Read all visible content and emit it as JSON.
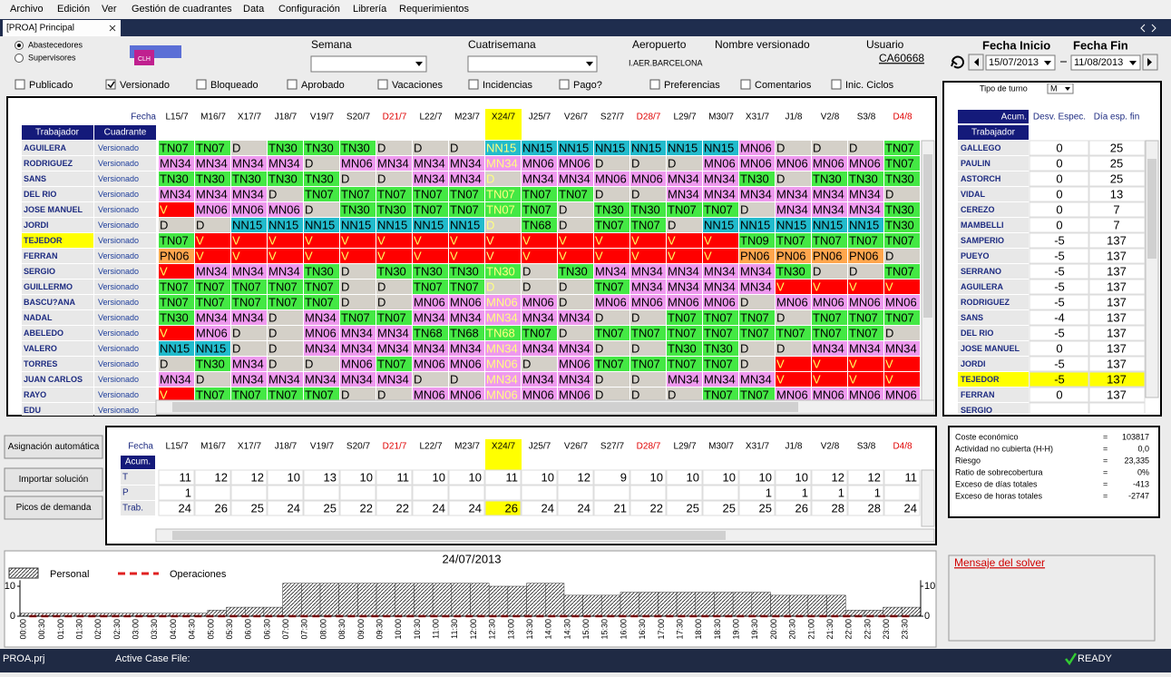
{
  "menu": [
    "Archivo",
    "Edición",
    "Ver",
    "Gestión de cuadrantes",
    "Data",
    "Configuración",
    "Librería",
    "Requerimientos"
  ],
  "tab": "[PROA] Principal",
  "controls": {
    "radios": [
      {
        "label": "Abastecedores",
        "checked": true
      },
      {
        "label": "Supervisores",
        "checked": false
      }
    ],
    "logo": "CLH",
    "semana": "Semana",
    "cuatrisemana": "Cuatrisemana",
    "aeropuerto": "Aeropuerto",
    "aeropuerto_value": "I.AER.BARCELONA",
    "nombre_versionado": "Nombre versionado",
    "usuario": "Usuario",
    "usuario_value": "CA60668",
    "fecha_inicio": "Fecha Inicio",
    "fecha_inicio_value": "15/07/2013",
    "fecha_fin": "Fecha Fin",
    "fecha_fin_value": "11/08/2013",
    "checkboxes": [
      {
        "label": "Publicado",
        "checked": false
      },
      {
        "label": "Versionado",
        "checked": true
      },
      {
        "label": "Bloqueado",
        "checked": false
      },
      {
        "label": "Aprobado",
        "checked": false
      },
      {
        "label": "Vacaciones",
        "checked": false
      },
      {
        "label": "Incidencias",
        "checked": false
      },
      {
        "label": "Pago?",
        "checked": false
      },
      {
        "label": "Preferencias",
        "checked": false
      },
      {
        "label": "Comentarios",
        "checked": false
      },
      {
        "label": "Inic. Ciclos",
        "checked": false
      }
    ]
  },
  "grid": {
    "date_label": "Fecha",
    "headers": [
      "Trabajador",
      "Cuadrante"
    ],
    "dates": [
      "L15/7",
      "M16/7",
      "X17/7",
      "J18/7",
      "V19/7",
      "S20/7",
      "D21/7",
      "L22/7",
      "M23/7",
      "X24/7",
      "J25/7",
      "V26/7",
      "S27/7",
      "D28/7",
      "L29/7",
      "M30/7",
      "X31/7",
      "J1/8",
      "V2/8",
      "S3/8",
      "D4/8"
    ],
    "rows": [
      {
        "name": "AGUILERA",
        "status": "Versionado",
        "shifts": [
          "TN07",
          "TN07",
          "D",
          "TN30",
          "TN30",
          "TN30",
          "D",
          "D",
          "D",
          "NN15",
          "NN15",
          "NN15",
          "NN15",
          "NN15",
          "NN15",
          "NN15",
          "MN06",
          "D",
          "D",
          "D",
          "TN07"
        ]
      },
      {
        "name": "RODRIGUEZ",
        "status": "Versionado",
        "shifts": [
          "MN34",
          "MN34",
          "MN34",
          "MN34",
          "D",
          "MN06",
          "MN34",
          "MN34",
          "MN34",
          "MN34",
          "MN06",
          "MN06",
          "D",
          "D",
          "D",
          "MN06",
          "MN06",
          "MN06",
          "MN06",
          "MN06",
          "TN07"
        ]
      },
      {
        "name": "SANS",
        "status": "Versionado",
        "shifts": [
          "TN30",
          "TN30",
          "TN30",
          "TN30",
          "TN30",
          "D",
          "D",
          "MN34",
          "MN34",
          "D",
          "MN34",
          "MN34",
          "MN06",
          "MN06",
          "MN34",
          "MN34",
          "TN30",
          "D",
          "TN30",
          "TN30",
          "TN30"
        ]
      },
      {
        "name": "DEL RIO",
        "status": "Versionado",
        "shifts": [
          "MN34",
          "MN34",
          "MN34",
          "D",
          "TN07",
          "TN07",
          "TN07",
          "TN07",
          "TN07",
          "TN07",
          "TN07",
          "TN07",
          "D",
          "D",
          "MN34",
          "MN34",
          "MN34",
          "MN34",
          "MN34",
          "MN34",
          "D"
        ]
      },
      {
        "name": "JOSE MANUEL",
        "status": "Versionado",
        "shifts": [
          "V",
          "MN06",
          "MN06",
          "MN06",
          "D",
          "TN30",
          "TN30",
          "TN07",
          "TN07",
          "TN07",
          "TN07",
          "D",
          "TN30",
          "TN30",
          "TN07",
          "TN07",
          "D",
          "MN34",
          "MN34",
          "MN34",
          "TN30"
        ]
      },
      {
        "name": "JORDI",
        "status": "Versionado",
        "shifts": [
          "D",
          "D",
          "NN15",
          "NN15",
          "NN15",
          "NN15",
          "NN15",
          "NN15",
          "NN15",
          "D",
          "TN68",
          "D",
          "TN07",
          "TN07",
          "D",
          "NN15",
          "NN15",
          "NN15",
          "NN15",
          "NN15",
          "TN30"
        ]
      },
      {
        "name": "TEJEDOR",
        "status": "Versionado",
        "shifts": [
          "TN07",
          "V",
          "V",
          "V",
          "V",
          "V",
          "V",
          "V",
          "V",
          "V",
          "V",
          "V",
          "V",
          "V",
          "V",
          "V",
          "TN09",
          "TN07",
          "TN07",
          "TN07",
          "TN07"
        ]
      },
      {
        "name": "FERRAN",
        "status": "Versionado",
        "shifts": [
          "PN06",
          "V",
          "V",
          "V",
          "V",
          "V",
          "V",
          "V",
          "V",
          "V",
          "V",
          "V",
          "V",
          "V",
          "V",
          "V",
          "PN06",
          "PN06",
          "PN06",
          "PN06",
          "D"
        ]
      },
      {
        "name": "SERGIO",
        "status": "Versionado",
        "shifts": [
          "V",
          "MN34",
          "MN34",
          "MN34",
          "TN30",
          "D",
          "TN30",
          "TN30",
          "TN30",
          "TN30",
          "D",
          "TN30",
          "MN34",
          "MN34",
          "MN34",
          "MN34",
          "MN34",
          "TN30",
          "D",
          "D",
          "TN07"
        ]
      },
      {
        "name": "GUILLERMO",
        "status": "Versionado",
        "shifts": [
          "TN07",
          "TN07",
          "TN07",
          "TN07",
          "TN07",
          "D",
          "D",
          "TN07",
          "TN07",
          "D",
          "D",
          "D",
          "TN07",
          "MN34",
          "MN34",
          "MN34",
          "MN34",
          "V",
          "V",
          "V",
          "V"
        ]
      },
      {
        "name": "BASCU?ANA",
        "status": "Versionado",
        "shifts": [
          "TN07",
          "TN07",
          "TN07",
          "TN07",
          "TN07",
          "D",
          "D",
          "MN06",
          "MN06",
          "MN06",
          "MN06",
          "D",
          "MN06",
          "MN06",
          "MN06",
          "MN06",
          "D",
          "MN06",
          "MN06",
          "MN06",
          "MN06"
        ]
      },
      {
        "name": "NADAL",
        "status": "Versionado",
        "shifts": [
          "TN30",
          "MN34",
          "MN34",
          "D",
          "MN34",
          "TN07",
          "TN07",
          "MN34",
          "MN34",
          "MN34",
          "MN34",
          "MN34",
          "D",
          "D",
          "TN07",
          "TN07",
          "TN07",
          "D",
          "TN07",
          "TN07",
          "TN07"
        ]
      },
      {
        "name": "ABELEDO",
        "status": "Versionado",
        "shifts": [
          "V",
          "MN06",
          "D",
          "D",
          "MN06",
          "MN34",
          "MN34",
          "TN68",
          "TN68",
          "TN68",
          "TN07",
          "D",
          "TN07",
          "TN07",
          "TN07",
          "TN07",
          "TN07",
          "TN07",
          "TN07",
          "TN07",
          "D"
        ]
      },
      {
        "name": "VALERO",
        "status": "Versionado",
        "shifts": [
          "NN15",
          "NN15",
          "D",
          "D",
          "MN34",
          "MN34",
          "MN34",
          "MN34",
          "MN34",
          "MN34",
          "MN34",
          "MN34",
          "D",
          "D",
          "TN30",
          "TN30",
          "D",
          "D",
          "MN34",
          "MN34",
          "MN34"
        ]
      },
      {
        "name": "TORRES",
        "status": "Versionado",
        "shifts": [
          "D",
          "TN30",
          "MN34",
          "D",
          "D",
          "MN06",
          "TN07",
          "MN06",
          "MN06",
          "MN06",
          "D",
          "MN06",
          "TN07",
          "TN07",
          "TN07",
          "TN07",
          "D",
          "V",
          "V",
          "V",
          "V"
        ]
      },
      {
        "name": "JUAN CARLOS",
        "status": "Versionado",
        "shifts": [
          "MN34",
          "D",
          "MN34",
          "MN34",
          "MN34",
          "MN34",
          "MN34",
          "D",
          "D",
          "MN34",
          "MN34",
          "MN34",
          "D",
          "D",
          "MN34",
          "MN34",
          "MN34",
          "V",
          "V",
          "V",
          "V"
        ]
      },
      {
        "name": "RAYO",
        "status": "Versionado",
        "shifts": [
          "V",
          "TN07",
          "TN07",
          "TN07",
          "TN07",
          "D",
          "D",
          "MN06",
          "MN06",
          "MN06",
          "MN06",
          "MN06",
          "D",
          "D",
          "D",
          "TN07",
          "TN07",
          "MN06",
          "MN06",
          "MN06",
          "MN06"
        ]
      },
      {
        "name": "EDU",
        "status": "Versionado",
        "shifts": []
      }
    ]
  },
  "right_panel": {
    "tipo_label": "Tipo de turno",
    "tipo_value": "M",
    "headers": [
      "Acum.",
      "Desv. Espec.",
      "Día esp. fin"
    ],
    "worker_header": "Trabajador",
    "rows": [
      {
        "name": "GALLEGO",
        "desv": 0,
        "dia": 25
      },
      {
        "name": "PAULIN",
        "desv": 0,
        "dia": 25
      },
      {
        "name": "ASTORCH",
        "desv": 0,
        "dia": 25
      },
      {
        "name": "VIDAL",
        "desv": 0,
        "dia": 13
      },
      {
        "name": "CEREZO",
        "desv": 0,
        "dia": 7
      },
      {
        "name": "MAMBELLI",
        "desv": 0,
        "dia": 7
      },
      {
        "name": "SAMPERIO",
        "desv": -5,
        "dia": 137
      },
      {
        "name": "PUEYO",
        "desv": -5,
        "dia": 137
      },
      {
        "name": "SERRANO",
        "desv": -5,
        "dia": 137
      },
      {
        "name": "AGUILERA",
        "desv": -5,
        "dia": 137
      },
      {
        "name": "RODRIGUEZ",
        "desv": -5,
        "dia": 137
      },
      {
        "name": "SANS",
        "desv": -4,
        "dia": 137
      },
      {
        "name": "DEL RIO",
        "desv": -5,
        "dia": 137
      },
      {
        "name": "JOSE MANUEL",
        "desv": 0,
        "dia": 137
      },
      {
        "name": "JORDI",
        "desv": -5,
        "dia": 137
      },
      {
        "name": "TEJEDOR",
        "desv": -5,
        "dia": 137
      },
      {
        "name": "FERRAN",
        "desv": 0,
        "dia": 137
      },
      {
        "name": "SERGIO",
        "desv": null,
        "dia": null
      }
    ]
  },
  "buttons": [
    "Asignación automática",
    "Importar solución",
    "Picos de demanda"
  ],
  "totals": {
    "date_label": "Fecha",
    "acum_label": "Acum.",
    "rows": [
      {
        "label": "T",
        "values": [
          11,
          12,
          12,
          10,
          13,
          10,
          11,
          10,
          10,
          11,
          10,
          12,
          9,
          10,
          10,
          10,
          10,
          10,
          12,
          12,
          11
        ]
      },
      {
        "label": "P",
        "values": [
          1,
          null,
          null,
          null,
          null,
          null,
          null,
          null,
          null,
          null,
          null,
          null,
          null,
          null,
          null,
          null,
          1,
          1,
          1,
          1,
          null
        ]
      },
      {
        "label": "Trab.",
        "values": [
          24,
          26,
          25,
          24,
          25,
          22,
          22,
          24,
          24,
          26,
          24,
          24,
          21,
          22,
          25,
          25,
          25,
          26,
          28,
          28,
          24
        ]
      }
    ]
  },
  "summary": [
    {
      "label": "Coste económico",
      "sign": "=",
      "value": "103817"
    },
    {
      "label": "Actividad no cubierta (H-H)",
      "sign": "=",
      "value": "0,0"
    },
    {
      "label": "Riesgo",
      "sign": "=",
      "value": "23,335"
    },
    {
      "label": "Ratio de sobrecobertura",
      "sign": "=",
      "value": "0%"
    },
    {
      "label": "Exceso de días totales",
      "sign": "=",
      "value": "-413"
    },
    {
      "label": "Exceso de horas totales",
      "sign": "=",
      "value": "-2747"
    }
  ],
  "chart_data": {
    "type": "bar",
    "title": "24/07/2013",
    "categories": [
      "00:00",
      "00:30",
      "01:00",
      "01:30",
      "02:00",
      "02:30",
      "03:00",
      "03:30",
      "04:00",
      "04:30",
      "05:00",
      "05:30",
      "06:00",
      "06:30",
      "07:00",
      "07:30",
      "08:00",
      "08:30",
      "09:00",
      "09:30",
      "10:00",
      "10:30",
      "11:00",
      "11:30",
      "12:00",
      "12:30",
      "13:00",
      "13:30",
      "14:00",
      "14:30",
      "15:00",
      "15:30",
      "16:00",
      "16:30",
      "17:00",
      "17:30",
      "18:00",
      "18:30",
      "19:00",
      "19:30",
      "20:00",
      "20:30",
      "21:00",
      "21:30",
      "22:00",
      "22:30",
      "23:00",
      "23:30"
    ],
    "series": [
      {
        "name": "Personal",
        "type": "bar",
        "color": "#333333",
        "values": [
          1,
          1,
          1,
          1,
          1,
          1,
          1,
          1,
          1,
          1,
          2,
          3,
          3,
          3,
          11,
          11,
          11,
          11,
          11,
          11,
          11,
          11,
          11,
          11,
          11,
          10,
          10,
          11,
          11,
          7,
          7,
          7,
          8,
          8,
          8,
          8,
          8,
          8,
          8,
          8,
          7,
          7,
          7,
          7,
          2,
          2,
          3,
          3
        ]
      },
      {
        "name": "Operaciones",
        "type": "line",
        "color": "#e02020",
        "axis": "y2",
        "values": [
          0,
          0,
          0,
          0,
          0,
          0,
          0,
          0,
          0,
          0,
          0,
          0,
          0,
          0,
          0,
          0,
          0,
          0,
          0,
          0,
          0,
          0,
          0,
          0,
          0,
          0,
          0,
          0,
          0,
          0,
          0,
          0,
          0,
          0,
          0,
          0,
          0,
          0,
          0,
          0,
          0,
          0,
          0,
          0,
          0,
          0,
          0,
          0
        ]
      }
    ],
    "ylim": [
      0,
      12
    ],
    "yticks": [
      0,
      10
    ],
    "y2lim": [
      0,
      12
    ],
    "y2ticks": [
      0,
      10
    ]
  },
  "solver_message": "Mensaje del solver",
  "status": {
    "project": "PROA.prj",
    "case_file": "Active Case File:",
    "state": "READY"
  }
}
